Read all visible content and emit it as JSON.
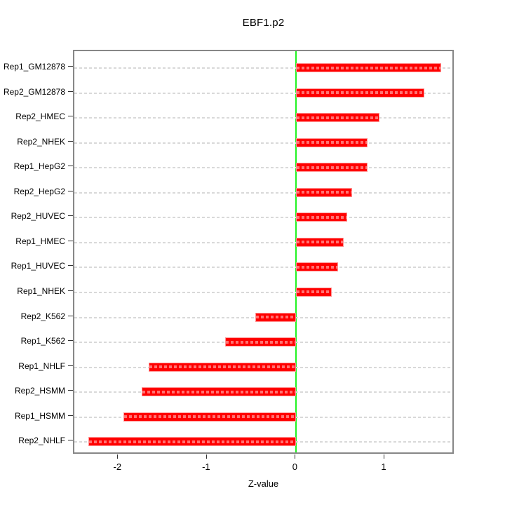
{
  "chart_data": {
    "type": "bar",
    "orientation": "horizontal",
    "title": "EBF1.p2",
    "xlabel": "Z-value",
    "ylabel": "",
    "legend": "none",
    "grid": "dotted-horizontal-reference-lines",
    "categories": [
      "Rep1_GM12878",
      "Rep2_GM12878",
      "Rep2_HMEC",
      "Rep2_NHEK",
      "Rep1_HepG2",
      "Rep2_HepG2",
      "Rep2_HUVEC",
      "Rep1_HMEC",
      "Rep1_HUVEC",
      "Rep1_NHEK",
      "Rep2_K562",
      "Rep1_K562",
      "Rep1_NHLF",
      "Rep2_HSMM",
      "Rep1_HSMM",
      "Rep2_NHLF"
    ],
    "values": [
      1.63,
      1.44,
      0.94,
      0.8,
      0.8,
      0.63,
      0.57,
      0.53,
      0.47,
      0.4,
      -0.46,
      -0.8,
      -1.66,
      -1.74,
      -1.95,
      -2.34
    ],
    "xlim": [
      -2.5,
      1.79
    ],
    "x_ticks": [
      "-2",
      "-1",
      "0",
      "1"
    ],
    "x_tick_values": [
      -2,
      -1,
      0,
      1
    ],
    "zero_reference": 0,
    "colors": {
      "bar_fill": "#ff0000",
      "bar_border": "#ff9393",
      "zero_line": "#21f321",
      "grid_line": "#d9d9d9",
      "box_border": "#878787",
      "tick": "#333333",
      "text": "#000000",
      "background": "#ffffff"
    }
  }
}
